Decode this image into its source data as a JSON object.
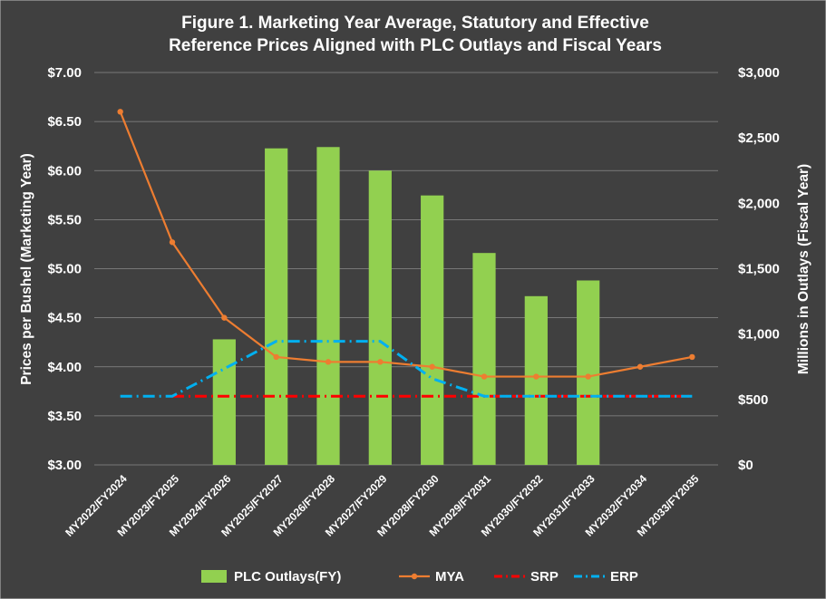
{
  "chart_data": {
    "type": "bar+line",
    "title_line1": "Figure 1. Marketing Year Average, Statutory and Effective",
    "title_line2": "Reference Prices Aligned with PLC Outlays and Fiscal Years",
    "ylabel_left": "Prices per Bushel (Marketing Year)",
    "ylabel_right": "Millions in Outlays (Fiscal Year)",
    "ylim_left": [
      3.0,
      7.0
    ],
    "ylim_right": [
      0,
      3000
    ],
    "yticks_left": [
      "$3.00",
      "$3.50",
      "$4.00",
      "$4.50",
      "$5.00",
      "$5.50",
      "$6.00",
      "$6.50",
      "$7.00"
    ],
    "yticks_right": [
      "$0",
      "$500",
      "$1,000",
      "$1,500",
      "$2,000",
      "$2,500",
      "$3,000"
    ],
    "categories": [
      "MY2022/FY2024",
      "MY2023/FY2025",
      "MY2024/FY2026",
      "MY2025/FY2027",
      "MY2026/FY2028",
      "MY2027/FY2029",
      "MY2028/FY2030",
      "MY2029/FY2031",
      "MY2030/FY2032",
      "MY2031/FY2033",
      "MY2032/FY2034",
      "MY2033/FY2035"
    ],
    "grid": true,
    "legend_position": "bottom",
    "series": [
      {
        "name": "PLC Outlays(FY)",
        "kind": "bar",
        "axis": "right",
        "color": "#92D050",
        "values": [
          null,
          null,
          960,
          2420,
          2430,
          2250,
          2060,
          1620,
          1290,
          1410,
          null,
          null
        ]
      },
      {
        "name": "MYA",
        "kind": "line",
        "axis": "left",
        "color": "#ED7D31",
        "style": "solid-markers",
        "values": [
          6.6,
          5.27,
          4.5,
          4.1,
          4.05,
          4.05,
          4.0,
          3.9,
          3.9,
          3.9,
          4.0,
          4.1
        ]
      },
      {
        "name": "SRP",
        "kind": "line",
        "axis": "left",
        "color": "#FF0000",
        "style": "dash-dot",
        "values": [
          null,
          3.7,
          3.7,
          3.7,
          3.7,
          3.7,
          3.7,
          3.7,
          3.7,
          3.7,
          3.7,
          3.7
        ]
      },
      {
        "name": "ERP",
        "kind": "line",
        "axis": "left",
        "color": "#00B0F0",
        "style": "dash-dot",
        "values": [
          3.7,
          3.7,
          3.98,
          4.26,
          4.26,
          4.26,
          3.88,
          3.7,
          3.7,
          3.7,
          3.7,
          3.7
        ]
      }
    ]
  }
}
